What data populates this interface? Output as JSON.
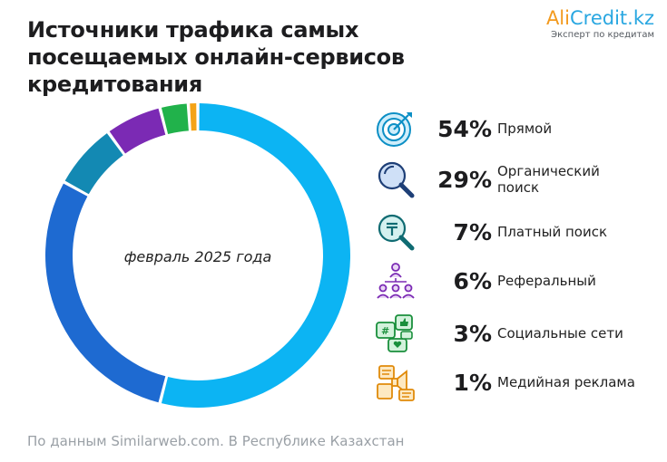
{
  "title": {
    "line1": "Источники трафика самых",
    "line2": "посещаемых онлайн-сервисов кредитования"
  },
  "logo": {
    "part_ali": "Ali",
    "part_credit": "Credit.kz",
    "tagline": "Эксперт по кредитам"
  },
  "center_label": "февраль 2025 года",
  "source": "По данным Similarweb.com. В Республике Казахстан",
  "colors": {
    "direct": "#0cb4f3",
    "organic": "#1e6ad1",
    "paid": "#1389b3",
    "referral": "#7b2ab4",
    "social": "#21b24b",
    "display": "#f4a317"
  },
  "chart_data": {
    "type": "pie",
    "variant": "donut",
    "categories": [
      "Прямой",
      "Органический поиск",
      "Платный поиск",
      "Реферальный",
      "Социальные сети",
      "Медийная реклама"
    ],
    "values": [
      54,
      29,
      7,
      6,
      3,
      1
    ],
    "labels": [
      "54%",
      "29%",
      "7%",
      "6%",
      "3%",
      "1%"
    ],
    "legend_placement": "right"
  },
  "legend": [
    {
      "pct": "54%",
      "label": "Прямой",
      "icon": "target-icon"
    },
    {
      "pct": "29%",
      "label": "Органический поиск",
      "label_line1": "Органический",
      "label_line2": "поиск",
      "icon": "magnifier-icon"
    },
    {
      "pct": "7%",
      "label": "Платный поиск",
      "icon": "paid-search-icon"
    },
    {
      "pct": "6%",
      "label": "Реферальный",
      "icon": "referral-people-icon"
    },
    {
      "pct": "3%",
      "label": "Социальные сети",
      "icon": "social-media-icon"
    },
    {
      "pct": "1%",
      "label": "Медийная реклама",
      "icon": "display-ads-icon"
    }
  ]
}
